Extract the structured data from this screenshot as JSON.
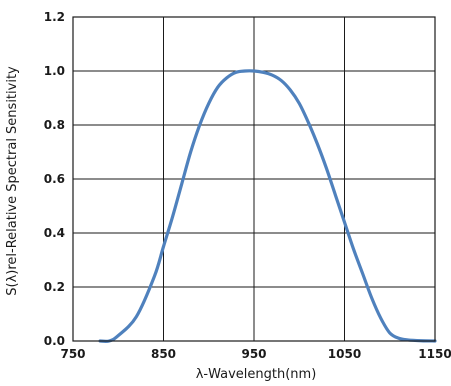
{
  "chart_data": {
    "type": "line",
    "title": "",
    "xlabel": "λ-Wavelength(nm)",
    "ylabel": "S(λ)rel-Relative Spectral Sensitivity",
    "xlim": [
      750,
      1150
    ],
    "ylim": [
      0,
      1.2
    ],
    "x_ticks": [
      "750",
      "850",
      "950",
      "1050",
      "1150"
    ],
    "y_ticks": [
      "0.0",
      "0.2",
      "0.4",
      "0.6",
      "0.8",
      "1.0",
      "1.2"
    ],
    "grid": true,
    "legend": "none",
    "series": [
      {
        "color": "#4f81bd",
        "x": [
          780,
          790,
          800,
          820,
          840,
          850,
          860,
          870,
          880,
          890,
          900,
          910,
          920,
          930,
          940,
          950,
          960,
          970,
          980,
          990,
          1000,
          1010,
          1020,
          1030,
          1040,
          1050,
          1060,
          1070,
          1080,
          1090,
          1100,
          1110,
          1120,
          1135,
          1150
        ],
        "y": [
          0.0,
          0.0,
          0.02,
          0.09,
          0.24,
          0.35,
          0.46,
          0.58,
          0.7,
          0.8,
          0.88,
          0.94,
          0.975,
          0.995,
          1.0,
          1.0,
          0.995,
          0.985,
          0.965,
          0.93,
          0.88,
          0.81,
          0.73,
          0.64,
          0.54,
          0.44,
          0.34,
          0.25,
          0.16,
          0.085,
          0.03,
          0.01,
          0.004,
          0.001,
          0.0
        ]
      }
    ]
  }
}
